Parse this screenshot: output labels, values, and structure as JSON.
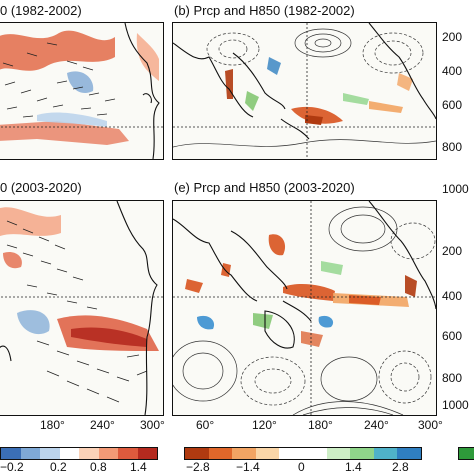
{
  "panels": {
    "a": {
      "title": "0 (1982-2002)"
    },
    "b": {
      "title": "(b) Prcp and H850 (1982-2002)"
    },
    "d": {
      "title": "0 (2003-2020)"
    },
    "e": {
      "title": "(e) Prcp and H850 (2003-2020)"
    }
  },
  "xticks_left": [
    "180°",
    "240°",
    "300°"
  ],
  "xticks_right": [
    "60°",
    "120°",
    "180°",
    "240°",
    "300°"
  ],
  "yticks_top_right": [
    "200",
    "400",
    "600",
    "800"
  ],
  "yticks_bottom_right": [
    "1000",
    "200",
    "400",
    "600",
    "800",
    "1000"
  ],
  "colorbar_left": {
    "labels": [
      "−0.2",
      "0.2",
      "0.8",
      "1.4"
    ],
    "colors": [
      "#3b6fb6",
      "#7fa9d6",
      "#bcd4ec",
      "#ffffff",
      "#fbd2b8",
      "#f39a76",
      "#dd5a3d",
      "#b52a1f"
    ]
  },
  "colorbar_right": {
    "labels": [
      "−2.8",
      "−1.4",
      "0",
      "1.4",
      "2.8"
    ],
    "colors": [
      "#b03a10",
      "#e0672a",
      "#f2a463",
      "#fad6a8",
      "#ffffff",
      "#ffffff",
      "#cdeec6",
      "#8fd58a",
      "#4fb2c9",
      "#2f7fc1"
    ]
  },
  "colors": {
    "precip_dry": "#d8531f",
    "precip_wet": "#63b84f",
    "precip_very_wet": "#3a8fd0",
    "sst_warm": "#d6432f",
    "sst_cool": "#6a98cf"
  }
}
